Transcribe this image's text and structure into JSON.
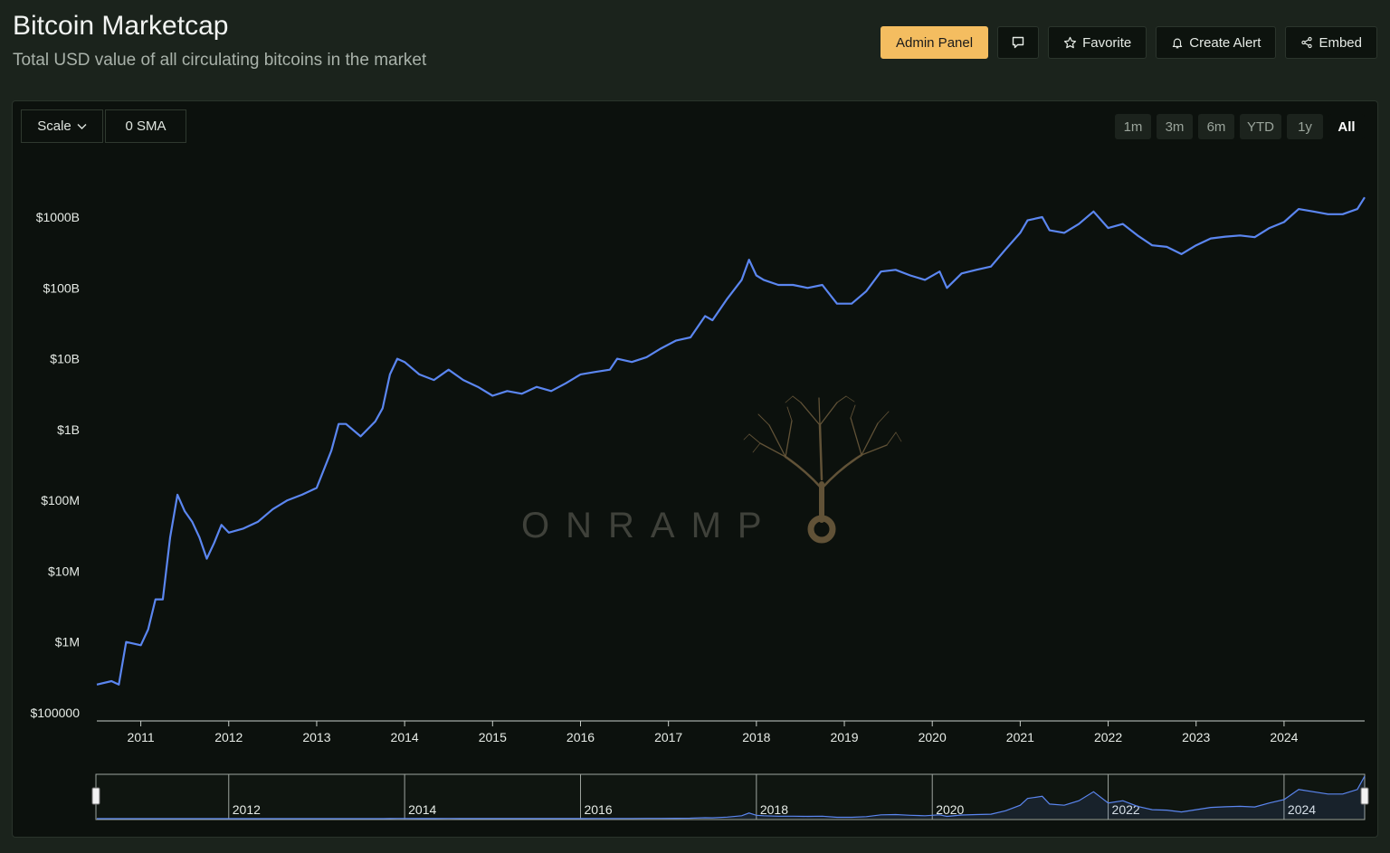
{
  "header": {
    "title": "Bitcoin Marketcap",
    "subtitle": "Total USD value of all circulating bitcoins in the market"
  },
  "toolbar": {
    "admin_label": "Admin Panel",
    "comment_icon": "comment-icon",
    "favorite_label": "Favorite",
    "favorite_icon": "star-icon",
    "alert_label": "Create Alert",
    "alert_icon": "bell-icon",
    "embed_label": "Embed",
    "embed_icon": "share-icon"
  },
  "controls": {
    "scale_label": "Scale",
    "sma_label": "0 SMA",
    "ranges": [
      "1m",
      "3m",
      "6m",
      "YTD",
      "1y",
      "All"
    ],
    "active_range": "All"
  },
  "watermark": {
    "text": "ONRAMP"
  },
  "colors": {
    "line": "#5b86f0",
    "accent": "#f4bd60",
    "watermark": "#6b5a3c"
  },
  "chart_data": {
    "type": "line",
    "title": "Bitcoin Marketcap",
    "xlabel": "",
    "ylabel": "",
    "y_scale": "log",
    "ylim": [
      100000,
      3000000000000
    ],
    "y_ticks": [
      {
        "value": 100000,
        "label": "$100000"
      },
      {
        "value": 1000000,
        "label": "$1M"
      },
      {
        "value": 10000000,
        "label": "$10M"
      },
      {
        "value": 100000000,
        "label": "$100M"
      },
      {
        "value": 1000000000,
        "label": "$1B"
      },
      {
        "value": 10000000000,
        "label": "$10B"
      },
      {
        "value": 100000000000,
        "label": "$100B"
      },
      {
        "value": 1000000000000,
        "label": "$1000B"
      }
    ],
    "xlim": [
      "2010-07",
      "2024-12"
    ],
    "x_ticks": [
      "2011",
      "2012",
      "2013",
      "2014",
      "2015",
      "2016",
      "2017",
      "2018",
      "2019",
      "2020",
      "2021",
      "2022",
      "2023",
      "2024"
    ],
    "navigator_ticks": [
      "2012",
      "2014",
      "2016",
      "2018",
      "2020",
      "2022",
      "2024"
    ],
    "grid": false,
    "series": [
      {
        "x": [
          "2010-07",
          "2010-09",
          "2010-10",
          "2010-11",
          "2011-01",
          "2011-02",
          "2011-03",
          "2011-04",
          "2011-05",
          "2011-06",
          "2011-07",
          "2011-08",
          "2011-09",
          "2011-10",
          "2011-11",
          "2011-12",
          "2012-01",
          "2012-03",
          "2012-05",
          "2012-07",
          "2012-09",
          "2012-11",
          "2013-01",
          "2013-03",
          "2013-04",
          "2013-05",
          "2013-07",
          "2013-09",
          "2013-10",
          "2013-11",
          "2013-12",
          "2014-01",
          "2014-03",
          "2014-05",
          "2014-07",
          "2014-09",
          "2014-11",
          "2015-01",
          "2015-03",
          "2015-05",
          "2015-07",
          "2015-09",
          "2015-11",
          "2016-01",
          "2016-03",
          "2016-05",
          "2016-06",
          "2016-08",
          "2016-10",
          "2016-12",
          "2017-02",
          "2017-04",
          "2017-06",
          "2017-07",
          "2017-09",
          "2017-11",
          "2017-12",
          "2018-01",
          "2018-02",
          "2018-04",
          "2018-06",
          "2018-08",
          "2018-10",
          "2018-12",
          "2019-02",
          "2019-04",
          "2019-06",
          "2019-08",
          "2019-10",
          "2019-12",
          "2020-02",
          "2020-03",
          "2020-05",
          "2020-07",
          "2020-09",
          "2020-11",
          "2021-01",
          "2021-02",
          "2021-04",
          "2021-05",
          "2021-07",
          "2021-09",
          "2021-11",
          "2022-01",
          "2022-03",
          "2022-05",
          "2022-07",
          "2022-09",
          "2022-11",
          "2023-01",
          "2023-03",
          "2023-05",
          "2023-07",
          "2023-09",
          "2023-11",
          "2024-01",
          "2024-03",
          "2024-05",
          "2024-07",
          "2024-09",
          "2024-11",
          "2024-12"
        ],
        "y": [
          250000,
          280000,
          250000,
          1000000,
          900000,
          1500000,
          4000000,
          4000000,
          30000000,
          120000000,
          70000000,
          50000000,
          30000000,
          15000000,
          25000000,
          45000000,
          35000000,
          40000000,
          50000000,
          75000000,
          100000000,
          120000000,
          150000000,
          500000000,
          1200000000,
          1200000000,
          800000000,
          1300000000,
          2000000000,
          6000000000,
          10000000000,
          9000000000,
          6000000000,
          5000000000,
          7000000000,
          5000000000,
          4000000000,
          3000000000,
          3500000000,
          3200000000,
          4000000000,
          3500000000,
          4500000000,
          6000000000,
          6500000000,
          7000000000,
          10000000000,
          9000000000,
          10500000000,
          14000000000,
          18000000000,
          20000000000,
          40000000000,
          35000000000,
          70000000000,
          130000000000,
          250000000000,
          150000000000,
          130000000000,
          110000000000,
          110000000000,
          100000000000,
          110000000000,
          60000000000,
          60000000000,
          90000000000,
          170000000000,
          180000000000,
          150000000000,
          130000000000,
          170000000000,
          100000000000,
          160000000000,
          180000000000,
          200000000000,
          350000000000,
          600000000000,
          900000000000,
          1000000000000,
          650000000000,
          600000000000,
          800000000000,
          1200000000000,
          700000000000,
          800000000000,
          550000000000,
          400000000000,
          380000000000,
          300000000000,
          400000000000,
          500000000000,
          530000000000,
          550000000000,
          520000000000,
          700000000000,
          850000000000,
          1300000000000,
          1200000000000,
          1100000000000,
          1100000000000,
          1300000000000,
          1900000000000
        ]
      }
    ]
  }
}
